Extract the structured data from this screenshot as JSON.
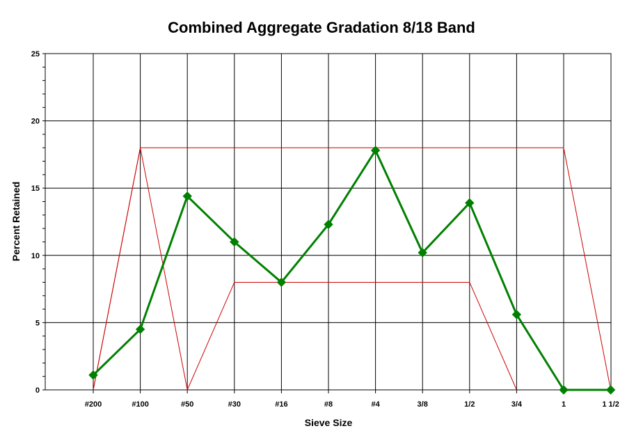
{
  "chart_data": {
    "type": "line",
    "title": "Combined Aggregate Gradation 8/18 Band",
    "xlabel": "Sieve Size",
    "ylabel": "Percent Retained",
    "categories": [
      "#200",
      "#100",
      "#50",
      "#30",
      "#16",
      "#8",
      "#4",
      "3/8",
      "1/2",
      "3/4",
      "1",
      "1 1/2"
    ],
    "ylim": [
      0,
      25
    ],
    "yticks": [
      0,
      5,
      10,
      15,
      20,
      25
    ],
    "grid": true,
    "series": [
      {
        "values": [
          1.1,
          4.5,
          14.4,
          11.0,
          8.0,
          12.3,
          17.8,
          10.2,
          13.9,
          5.6,
          0,
          0
        ],
        "color": "#008000",
        "marker": "diamond"
      }
    ],
    "band": {
      "upper": [
        0,
        18,
        18,
        18,
        18,
        18,
        18,
        18,
        18,
        18,
        18,
        0
      ],
      "lower": [
        0,
        18,
        0,
        8,
        8,
        8,
        8,
        8,
        8,
        0,
        null,
        null
      ],
      "color": "#cc0000"
    }
  }
}
